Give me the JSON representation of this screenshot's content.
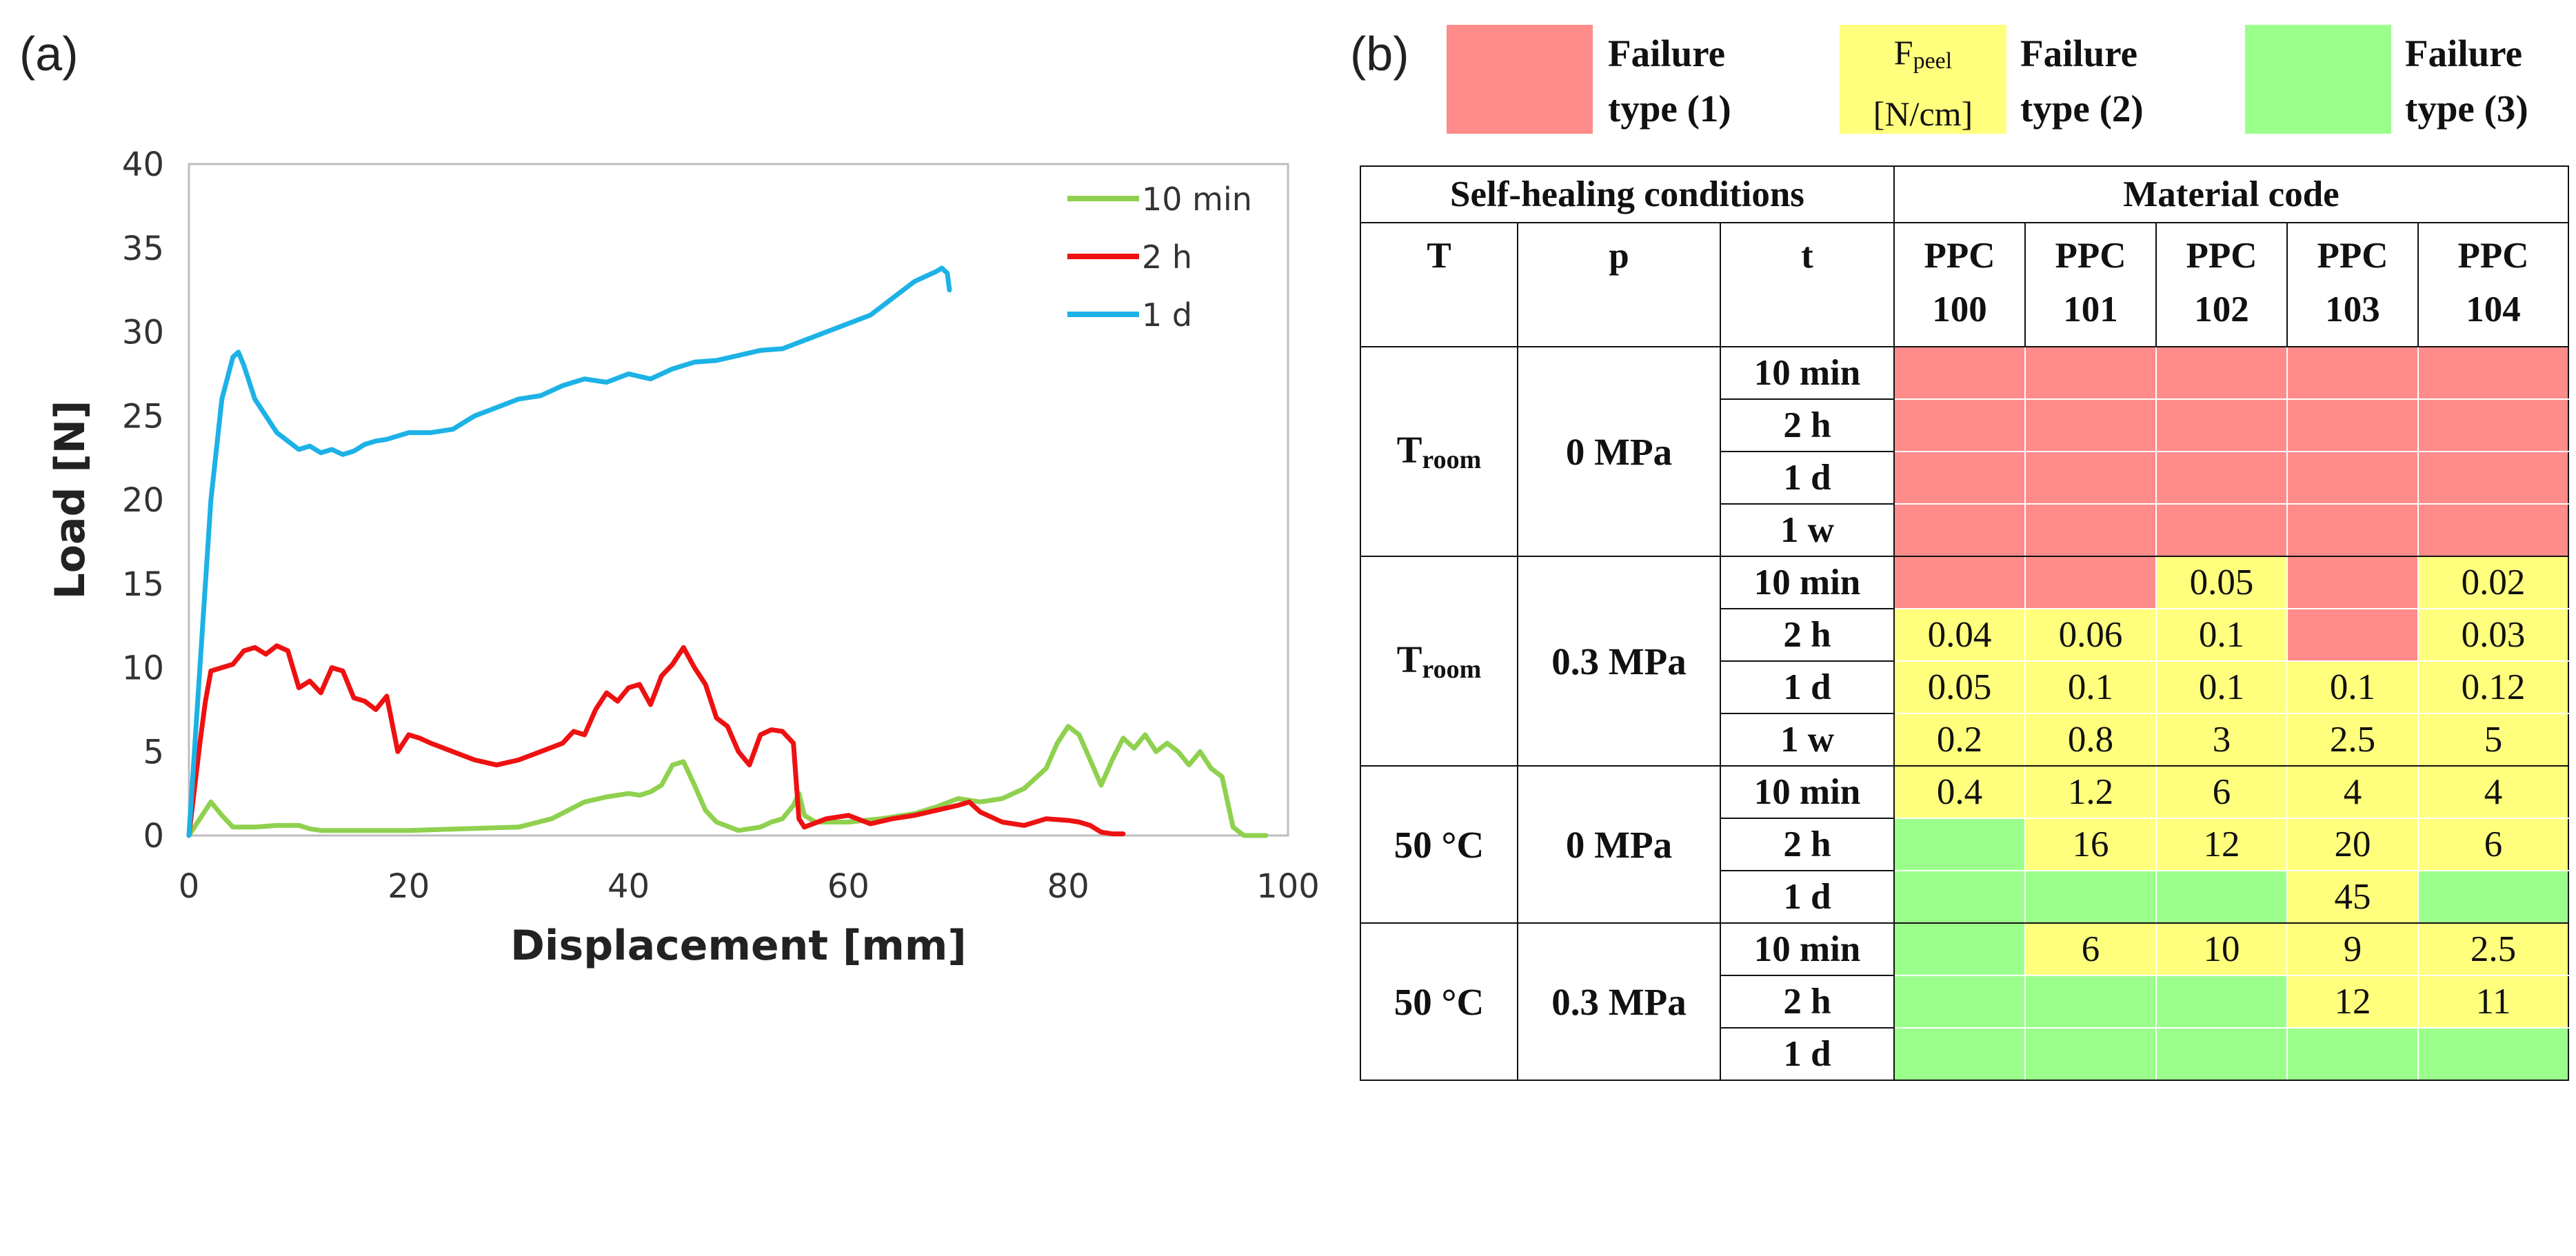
{
  "panel_a_label": "(a)",
  "panel_b_label": "(b)",
  "colors": {
    "failure1": "#ff8b8b",
    "failure2": "#ffff7d",
    "failure3": "#9bff8c",
    "series_10min": "#8fd14f",
    "series_2h": "#ee1111",
    "series_1d": "#1cb2e6"
  },
  "chart_data": {
    "type": "line",
    "title": "",
    "xlabel": "Displacement [mm]",
    "ylabel": "Load [N]",
    "xlim": [
      0,
      100
    ],
    "ylim": [
      0,
      40
    ],
    "xticks": [
      0,
      20,
      40,
      60,
      80,
      100
    ],
    "yticks": [
      0,
      5,
      10,
      15,
      20,
      25,
      30,
      35,
      40
    ],
    "grid": false,
    "legend_position": "top-right",
    "series": [
      {
        "name": "10 min",
        "color": "#8fd14f",
        "x": [
          0,
          1,
          2,
          3,
          4,
          6,
          8,
          10,
          11,
          12,
          20,
          30,
          33,
          36,
          38,
          40,
          41,
          42,
          43,
          44,
          45,
          46,
          47,
          48,
          50,
          52,
          53,
          54,
          55,
          55.5,
          56,
          57,
          60,
          63,
          66,
          68,
          70,
          72,
          74,
          76,
          78,
          79,
          80,
          81,
          82,
          83,
          84,
          85,
          86,
          87,
          88,
          89,
          90,
          91,
          92,
          93,
          94,
          94.5,
          95,
          96,
          98
        ],
        "y": [
          0,
          1.0,
          2.0,
          1.2,
          0.5,
          0.5,
          0.6,
          0.6,
          0.4,
          0.3,
          0.3,
          0.5,
          1.0,
          2.0,
          2.3,
          2.5,
          2.4,
          2.6,
          3.0,
          4.2,
          4.4,
          3.0,
          1.5,
          0.8,
          0.3,
          0.5,
          0.8,
          1.0,
          1.8,
          2.5,
          1.2,
          0.8,
          0.8,
          1.0,
          1.3,
          1.7,
          2.2,
          2.0,
          2.2,
          2.8,
          4.0,
          5.5,
          6.5,
          6.0,
          4.5,
          3.0,
          4.5,
          5.8,
          5.2,
          6.0,
          5.0,
          5.5,
          5.0,
          4.2,
          5.0,
          4.0,
          3.5,
          2.0,
          0.5,
          0,
          0
        ]
      },
      {
        "name": "2 h",
        "color": "#ee1111",
        "x": [
          0,
          1,
          1.5,
          2,
          3,
          4,
          5,
          6,
          7,
          8,
          9,
          10,
          11,
          12,
          13,
          14,
          15,
          16,
          17,
          18,
          19,
          20,
          21,
          22,
          24,
          26,
          28,
          30,
          32,
          34,
          35,
          36,
          37,
          38,
          39,
          40,
          41,
          42,
          43,
          44,
          45,
          46,
          47,
          48,
          49,
          50,
          51,
          52,
          53,
          54,
          55,
          55.5,
          56,
          58,
          60,
          62,
          64,
          66,
          68,
          70,
          71,
          72,
          74,
          76,
          78,
          80,
          81,
          82,
          83,
          84,
          85
        ],
        "y": [
          0,
          5.5,
          8.0,
          9.8,
          10.0,
          10.2,
          11.0,
          11.2,
          10.8,
          11.3,
          11.0,
          8.8,
          9.2,
          8.5,
          10.0,
          9.8,
          8.2,
          8.0,
          7.5,
          8.3,
          5.0,
          6.0,
          5.8,
          5.5,
          5.0,
          4.5,
          4.2,
          4.5,
          5.0,
          5.5,
          6.2,
          6.0,
          7.5,
          8.5,
          8.0,
          8.8,
          9.0,
          7.8,
          9.5,
          10.2,
          11.2,
          10.0,
          9.0,
          7.0,
          6.5,
          5.0,
          4.2,
          6.0,
          6.3,
          6.2,
          5.5,
          1.0,
          0.5,
          1.0,
          1.2,
          0.7,
          1.0,
          1.2,
          1.5,
          1.8,
          2.0,
          1.4,
          0.8,
          0.6,
          1.0,
          0.9,
          0.8,
          0.6,
          0.2,
          0.1,
          0.1
        ]
      },
      {
        "name": "1 d",
        "color": "#1cb2e6",
        "x": [
          0,
          1,
          2,
          3,
          4,
          4.5,
          5,
          6,
          7,
          8,
          9,
          10,
          11,
          12,
          13,
          14,
          15,
          16,
          17,
          18,
          20,
          22,
          24,
          26,
          28,
          30,
          32,
          34,
          36,
          38,
          40,
          42,
          44,
          46,
          48,
          50,
          52,
          54,
          56,
          58,
          60,
          62,
          64,
          66,
          67,
          68,
          68.5,
          69,
          69.2
        ],
        "y": [
          0,
          10,
          20,
          26,
          28.5,
          28.8,
          28.0,
          26.0,
          25.0,
          24.0,
          23.5,
          23.0,
          23.2,
          22.8,
          23.0,
          22.7,
          22.9,
          23.3,
          23.5,
          23.6,
          24.0,
          24.0,
          24.2,
          25.0,
          25.5,
          26.0,
          26.2,
          26.8,
          27.2,
          27.0,
          27.5,
          27.2,
          27.8,
          28.2,
          28.3,
          28.6,
          28.9,
          29.0,
          29.5,
          30.0,
          30.5,
          31.0,
          32.0,
          33.0,
          33.3,
          33.6,
          33.8,
          33.5,
          32.5
        ]
      }
    ]
  },
  "legend_b": {
    "failure1_line1": "Failure",
    "failure1_line2": "type (1)",
    "fpeel_main": "F",
    "fpeel_sub": "peel",
    "fpeel_unit": "[N/cm]",
    "failure2_line1": "Failure",
    "failure2_line2": "type (2)",
    "failure3_line1": "Failure",
    "failure3_line2": "type (3)"
  },
  "table": {
    "header_conditions": "Self-healing conditions",
    "header_material": "Material code",
    "col_T": "T",
    "col_p": "p",
    "col_t": "t",
    "materials": [
      {
        "line1": "PPC",
        "line2": "100"
      },
      {
        "line1": "PPC",
        "line2": "101"
      },
      {
        "line1": "PPC",
        "line2": "102"
      },
      {
        "line1": "PPC",
        "line2": "103"
      },
      {
        "line1": "PPC",
        "line2": "104"
      }
    ],
    "groups": [
      {
        "T_main": "T",
        "T_sub": "room",
        "p": "0 MPa",
        "rows": [
          {
            "t": "10 min",
            "cells": [
              {
                "type": 1,
                "v": ""
              },
              {
                "type": 1,
                "v": ""
              },
              {
                "type": 1,
                "v": ""
              },
              {
                "type": 1,
                "v": ""
              },
              {
                "type": 1,
                "v": ""
              }
            ]
          },
          {
            "t": "2 h",
            "cells": [
              {
                "type": 1,
                "v": ""
              },
              {
                "type": 1,
                "v": ""
              },
              {
                "type": 1,
                "v": ""
              },
              {
                "type": 1,
                "v": ""
              },
              {
                "type": 1,
                "v": ""
              }
            ]
          },
          {
            "t": "1 d",
            "cells": [
              {
                "type": 1,
                "v": ""
              },
              {
                "type": 1,
                "v": ""
              },
              {
                "type": 1,
                "v": ""
              },
              {
                "type": 1,
                "v": ""
              },
              {
                "type": 1,
                "v": ""
              }
            ]
          },
          {
            "t": "1 w",
            "cells": [
              {
                "type": 1,
                "v": ""
              },
              {
                "type": 1,
                "v": ""
              },
              {
                "type": 1,
                "v": ""
              },
              {
                "type": 1,
                "v": ""
              },
              {
                "type": 1,
                "v": ""
              }
            ]
          }
        ]
      },
      {
        "T_main": "T",
        "T_sub": "room",
        "p": "0.3 MPa",
        "rows": [
          {
            "t": "10 min",
            "cells": [
              {
                "type": 1,
                "v": ""
              },
              {
                "type": 1,
                "v": ""
              },
              {
                "type": 2,
                "v": "0.05"
              },
              {
                "type": 1,
                "v": ""
              },
              {
                "type": 2,
                "v": "0.02"
              }
            ]
          },
          {
            "t": "2 h",
            "cells": [
              {
                "type": 2,
                "v": "0.04"
              },
              {
                "type": 2,
                "v": "0.06"
              },
              {
                "type": 2,
                "v": "0.1"
              },
              {
                "type": 1,
                "v": ""
              },
              {
                "type": 2,
                "v": "0.03"
              }
            ]
          },
          {
            "t": "1 d",
            "cells": [
              {
                "type": 2,
                "v": "0.05"
              },
              {
                "type": 2,
                "v": "0.1"
              },
              {
                "type": 2,
                "v": "0.1"
              },
              {
                "type": 2,
                "v": "0.1"
              },
              {
                "type": 2,
                "v": "0.12"
              }
            ]
          },
          {
            "t": "1 w",
            "cells": [
              {
                "type": 2,
                "v": "0.2"
              },
              {
                "type": 2,
                "v": "0.8"
              },
              {
                "type": 2,
                "v": "3"
              },
              {
                "type": 2,
                "v": "2.5"
              },
              {
                "type": 2,
                "v": "5"
              }
            ]
          }
        ]
      },
      {
        "T_main": "50 °C",
        "T_sub": "",
        "p": "0 MPa",
        "rows": [
          {
            "t": "10 min",
            "cells": [
              {
                "type": 2,
                "v": "0.4"
              },
              {
                "type": 2,
                "v": "1.2"
              },
              {
                "type": 2,
                "v": "6"
              },
              {
                "type": 2,
                "v": "4"
              },
              {
                "type": 2,
                "v": "4"
              }
            ]
          },
          {
            "t": "2 h",
            "cells": [
              {
                "type": 3,
                "v": ""
              },
              {
                "type": 2,
                "v": "16"
              },
              {
                "type": 2,
                "v": "12"
              },
              {
                "type": 2,
                "v": "20"
              },
              {
                "type": 2,
                "v": "6"
              }
            ]
          },
          {
            "t": "1 d",
            "cells": [
              {
                "type": 3,
                "v": ""
              },
              {
                "type": 3,
                "v": ""
              },
              {
                "type": 3,
                "v": ""
              },
              {
                "type": 2,
                "v": "45"
              },
              {
                "type": 3,
                "v": ""
              }
            ]
          }
        ]
      },
      {
        "T_main": "50 °C",
        "T_sub": "",
        "p": "0.3 MPa",
        "rows": [
          {
            "t": "10 min",
            "cells": [
              {
                "type": 3,
                "v": ""
              },
              {
                "type": 2,
                "v": "6"
              },
              {
                "type": 2,
                "v": "10"
              },
              {
                "type": 2,
                "v": "9"
              },
              {
                "type": 2,
                "v": "2.5"
              }
            ]
          },
          {
            "t": "2 h",
            "cells": [
              {
                "type": 3,
                "v": ""
              },
              {
                "type": 3,
                "v": ""
              },
              {
                "type": 3,
                "v": ""
              },
              {
                "type": 2,
                "v": "12"
              },
              {
                "type": 2,
                "v": "11"
              }
            ]
          },
          {
            "t": "1 d",
            "cells": [
              {
                "type": 3,
                "v": ""
              },
              {
                "type": 3,
                "v": ""
              },
              {
                "type": 3,
                "v": ""
              },
              {
                "type": 3,
                "v": ""
              },
              {
                "type": 3,
                "v": ""
              }
            ]
          }
        ]
      }
    ]
  }
}
